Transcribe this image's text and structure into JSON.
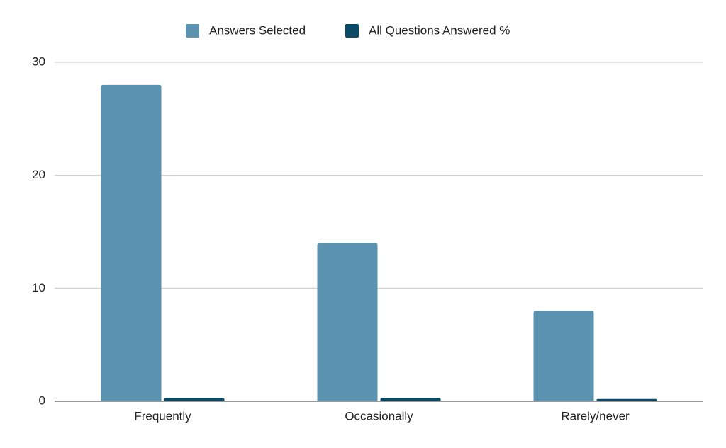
{
  "chart_data": {
    "type": "bar",
    "categories": [
      "Frequently",
      "Occasionally",
      "Rarely/never"
    ],
    "series": [
      {
        "name": "Answers Selected",
        "color": "#5a92b0",
        "values": [
          28,
          14,
          8
        ]
      },
      {
        "name": "All Questions Answered %",
        "color": "#0b4a66",
        "values": [
          0.3,
          0.3,
          0.2
        ]
      }
    ],
    "ylim": [
      0,
      30
    ],
    "yticks": [
      0,
      10,
      20,
      30
    ],
    "grid": true,
    "legend": "top"
  }
}
